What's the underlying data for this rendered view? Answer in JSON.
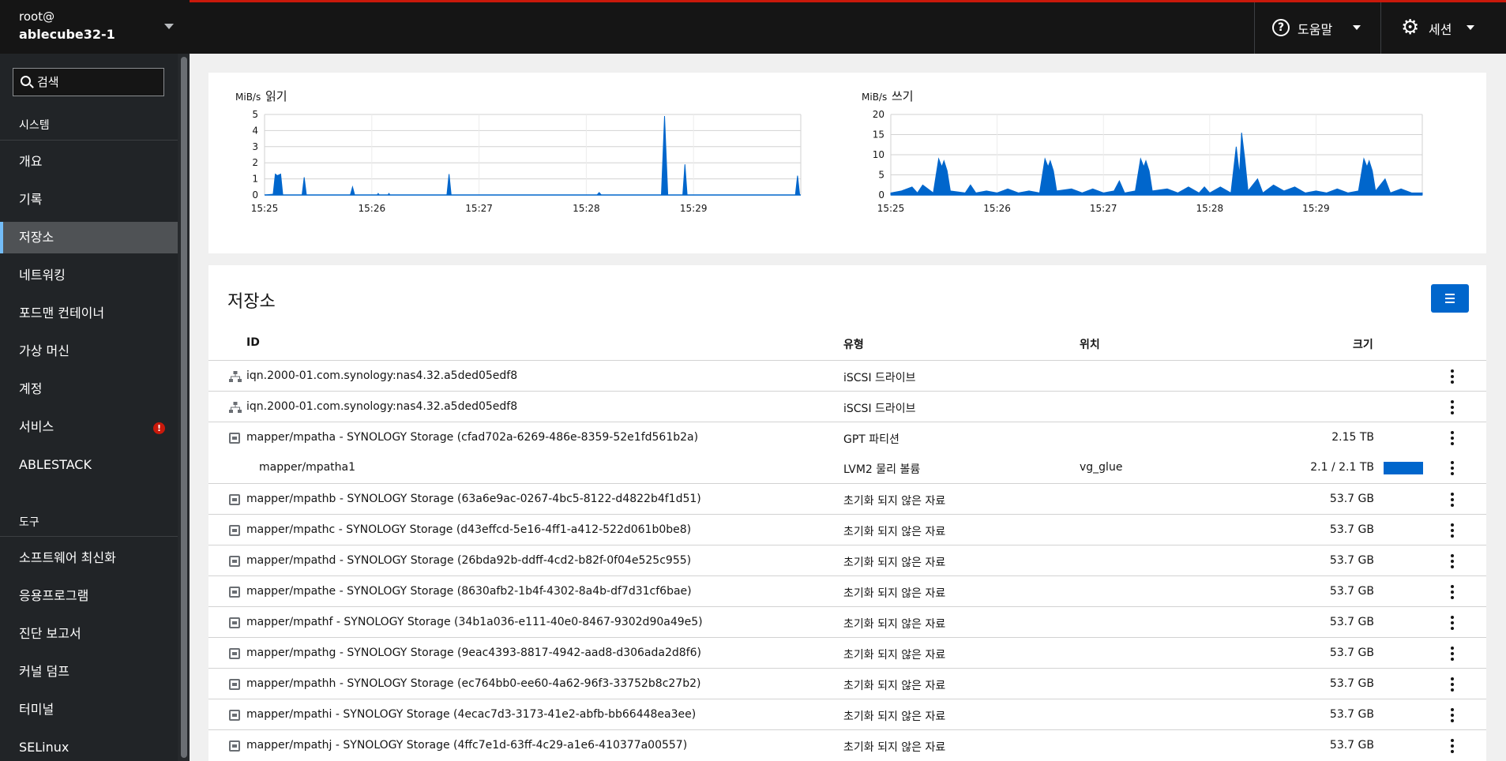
{
  "host": {
    "user": "root@",
    "name": "ablecube32-1"
  },
  "search": {
    "placeholder": "검색"
  },
  "sidebar": {
    "section_system": "시스템",
    "items": [
      {
        "label": "개요"
      },
      {
        "label": "기록"
      },
      {
        "label": "저장소",
        "active": true
      },
      {
        "label": "네트워킹"
      },
      {
        "label": "포드맨 컨테이너"
      },
      {
        "label": "가상 머신"
      },
      {
        "label": "계정"
      },
      {
        "label": "서비스",
        "alert": "!"
      },
      {
        "label": "ABLESTACK"
      }
    ],
    "section_tools": "도구",
    "tools": [
      {
        "label": "소프트웨어 최신화"
      },
      {
        "label": "응용프로그램"
      },
      {
        "label": "진단 보고서"
      },
      {
        "label": "커널 덤프"
      },
      {
        "label": "터미널"
      },
      {
        "label": "SELinux"
      }
    ]
  },
  "topbar": {
    "help_label": "도움말",
    "session_label": "세션"
  },
  "colors": {
    "accent": "#0066cc",
    "alert": "#c9190b",
    "sidebar_bg": "#212427",
    "topbar_bg": "#151515"
  },
  "chart_data": [
    {
      "type": "area",
      "title": "읽기",
      "ylabel": "MiB/s",
      "ylim": [
        0,
        5
      ],
      "yticks": [
        "0",
        "1",
        "2",
        "3",
        "4",
        "5"
      ],
      "xticks": [
        "15:25",
        "15:26",
        "15:27",
        "15:28",
        "15:29"
      ],
      "x_minutes_range": [
        0,
        5
      ],
      "series": [
        {
          "values": [
            [
              0,
              0
            ],
            [
              0.08,
              0.05
            ],
            [
              0.1,
              1.3
            ],
            [
              0.12,
              1.2
            ],
            [
              0.15,
              1.3
            ],
            [
              0.17,
              0
            ],
            [
              0.35,
              0
            ],
            [
              0.37,
              1.1
            ],
            [
              0.39,
              0
            ],
            [
              0.8,
              0
            ],
            [
              0.82,
              0.5
            ],
            [
              0.84,
              0
            ],
            [
              1.05,
              0
            ],
            [
              1.06,
              0.1
            ],
            [
              1.07,
              0
            ],
            [
              1.15,
              0
            ],
            [
              1.16,
              0.1
            ],
            [
              1.17,
              0
            ],
            [
              1.7,
              0
            ],
            [
              1.72,
              1.3
            ],
            [
              1.74,
              0
            ],
            [
              3.1,
              0
            ],
            [
              3.12,
              0.15
            ],
            [
              3.14,
              0
            ],
            [
              3.7,
              0
            ],
            [
              3.73,
              4.9
            ],
            [
              3.76,
              0
            ],
            [
              3.9,
              0
            ],
            [
              3.92,
              1.9
            ],
            [
              3.94,
              0
            ],
            [
              4.95,
              0
            ],
            [
              4.97,
              1.2
            ],
            [
              4.99,
              0
            ]
          ]
        }
      ]
    },
    {
      "type": "area",
      "title": "쓰기",
      "ylabel": "MiB/s",
      "ylim": [
        0,
        20
      ],
      "yticks": [
        "0",
        "5",
        "10",
        "15",
        "20"
      ],
      "xticks": [
        "15:25",
        "15:26",
        "15:27",
        "15:28",
        "15:29"
      ],
      "x_minutes_range": [
        0,
        5
      ],
      "series": [
        {
          "values": [
            [
              0,
              0.5
            ],
            [
              0.1,
              1
            ],
            [
              0.2,
              2
            ],
            [
              0.25,
              0.5
            ],
            [
              0.3,
              2.5
            ],
            [
              0.4,
              0.5
            ],
            [
              0.45,
              9
            ],
            [
              0.48,
              7
            ],
            [
              0.5,
              8.5
            ],
            [
              0.53,
              6
            ],
            [
              0.56,
              1
            ],
            [
              0.7,
              0.5
            ],
            [
              0.75,
              2.5
            ],
            [
              0.8,
              0.5
            ],
            [
              0.9,
              1
            ],
            [
              1,
              0.5
            ],
            [
              1.1,
              1.5
            ],
            [
              1.2,
              0.5
            ],
            [
              1.3,
              1
            ],
            [
              1.4,
              0.5
            ],
            [
              1.45,
              9
            ],
            [
              1.48,
              7
            ],
            [
              1.5,
              8.5
            ],
            [
              1.53,
              6
            ],
            [
              1.56,
              1
            ],
            [
              1.7,
              1.5
            ],
            [
              1.8,
              0.5
            ],
            [
              1.9,
              1.5
            ],
            [
              2,
              0.5
            ],
            [
              2.1,
              1
            ],
            [
              2.15,
              3.5
            ],
            [
              2.2,
              0.5
            ],
            [
              2.3,
              1
            ],
            [
              2.35,
              9
            ],
            [
              2.38,
              7
            ],
            [
              2.4,
              8.5
            ],
            [
              2.43,
              6
            ],
            [
              2.46,
              1
            ],
            [
              2.6,
              1.5
            ],
            [
              2.7,
              0.5
            ],
            [
              2.8,
              2
            ],
            [
              2.9,
              0.5
            ],
            [
              2.95,
              2
            ],
            [
              3,
              0.5
            ],
            [
              3.1,
              2
            ],
            [
              3.2,
              0.5
            ],
            [
              3.25,
              12
            ],
            [
              3.28,
              5
            ],
            [
              3.3,
              15.5
            ],
            [
              3.33,
              9
            ],
            [
              3.36,
              1
            ],
            [
              3.45,
              4
            ],
            [
              3.5,
              0.5
            ],
            [
              3.6,
              2.5
            ],
            [
              3.7,
              1
            ],
            [
              3.8,
              2
            ],
            [
              3.9,
              0.5
            ],
            [
              4,
              1
            ],
            [
              4.1,
              0.5
            ],
            [
              4.2,
              1.5
            ],
            [
              4.3,
              0.5
            ],
            [
              4.4,
              1
            ],
            [
              4.45,
              9
            ],
            [
              4.48,
              7
            ],
            [
              4.5,
              8.5
            ],
            [
              4.53,
              6
            ],
            [
              4.56,
              1
            ],
            [
              4.65,
              4
            ],
            [
              4.7,
              0.5
            ],
            [
              4.8,
              1.5
            ],
            [
              4.9,
              0.5
            ],
            [
              5,
              0.5
            ]
          ]
        }
      ]
    }
  ],
  "storage": {
    "title": "저장소",
    "columns": {
      "id": "ID",
      "type": "유형",
      "location": "위치",
      "size": "크기"
    },
    "rows": [
      {
        "icon": "network",
        "id": "iqn.2000-01.com.synology:nas4.32.a5ded05edf8",
        "type": "iSCSI 드라이브",
        "location": "",
        "size": ""
      },
      {
        "icon": "network",
        "id": "iqn.2000-01.com.synology:nas4.32.a5ded05edf8",
        "type": "iSCSI 드라이브",
        "location": "",
        "size": ""
      },
      {
        "icon": "disk",
        "id": "mapper/mpatha - SYNOLOGY Storage (cfad702a-6269-486e-8359-52e1fd561b2a)",
        "type": "GPT 파티션",
        "location": "",
        "size": "2.15 TB"
      },
      {
        "icon": "",
        "sub": true,
        "id": "mapper/mpatha1",
        "type": "LVM2 물리 볼륨",
        "location": "vg_glue",
        "size": "2.1 / 2.1 TB",
        "usage": 1.0
      },
      {
        "icon": "disk",
        "id": "mapper/mpathb - SYNOLOGY Storage (63a6e9ac-0267-4bc5-8122-d4822b4f1d51)",
        "type": "초기화 되지 않은 자료",
        "location": "",
        "size": "53.7 GB"
      },
      {
        "icon": "disk",
        "id": "mapper/mpathc - SYNOLOGY Storage (d43effcd-5e16-4ff1-a412-522d061b0be8)",
        "type": "초기화 되지 않은 자료",
        "location": "",
        "size": "53.7 GB"
      },
      {
        "icon": "disk",
        "id": "mapper/mpathd - SYNOLOGY Storage (26bda92b-ddff-4cd2-b82f-0f04e525c955)",
        "type": "초기화 되지 않은 자료",
        "location": "",
        "size": "53.7 GB"
      },
      {
        "icon": "disk",
        "id": "mapper/mpathe - SYNOLOGY Storage (8630afb2-1b4f-4302-8a4b-df7d31cf6bae)",
        "type": "초기화 되지 않은 자료",
        "location": "",
        "size": "53.7 GB"
      },
      {
        "icon": "disk",
        "id": "mapper/mpathf - SYNOLOGY Storage (34b1a036-e111-40e0-8467-9302d90a49e5)",
        "type": "초기화 되지 않은 자료",
        "location": "",
        "size": "53.7 GB"
      },
      {
        "icon": "disk",
        "id": "mapper/mpathg - SYNOLOGY Storage (9eac4393-8817-4942-aad8-d306ada2d8f6)",
        "type": "초기화 되지 않은 자료",
        "location": "",
        "size": "53.7 GB"
      },
      {
        "icon": "disk",
        "id": "mapper/mpathh - SYNOLOGY Storage (ec764bb0-ee60-4a62-96f3-33752b8c27b2)",
        "type": "초기화 되지 않은 자료",
        "location": "",
        "size": "53.7 GB"
      },
      {
        "icon": "disk",
        "id": "mapper/mpathi - SYNOLOGY Storage (4ecac7d3-3173-41e2-abfb-bb66448ea3ee)",
        "type": "초기화 되지 않은 자료",
        "location": "",
        "size": "53.7 GB"
      },
      {
        "icon": "disk",
        "id": "mapper/mpathj - SYNOLOGY Storage (4ffc7e1d-63ff-4c29-a1e6-410377a00557)",
        "type": "초기화 되지 않은 자료",
        "location": "",
        "size": "53.7 GB"
      }
    ]
  }
}
